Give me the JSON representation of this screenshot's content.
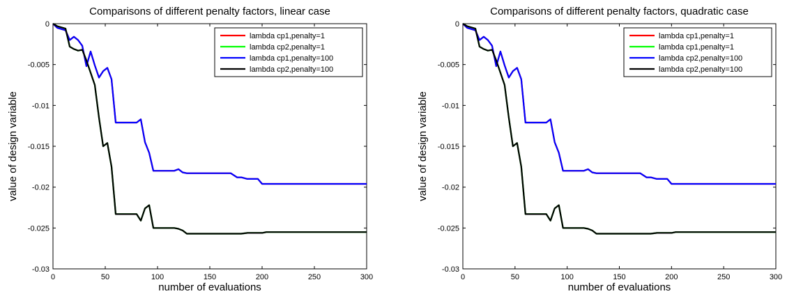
{
  "chart_data": [
    {
      "type": "line",
      "title": "Comparisons of different penalty factors, linear case",
      "xlabel": "number of evaluations",
      "ylabel": "value of design variable",
      "xlim": [
        0,
        300
      ],
      "ylim": [
        -0.03,
        0
      ],
      "xticks": [
        "0",
        "50",
        "100",
        "150",
        "200",
        "250",
        "300"
      ],
      "yticks": [
        "0",
        "-0.005",
        "-0.01",
        "-0.015",
        "-0.02",
        "-0.025",
        "-0.03"
      ],
      "grid": false,
      "legend_position": "top-right",
      "series": [
        {
          "name": "lambda cp1,penalty=1",
          "color": "#ff0000",
          "group": "upper"
        },
        {
          "name": "lambda cp2,penalty=1",
          "color": "#00ff00",
          "group": "lower"
        },
        {
          "name": "lambda cp1,penalty=100",
          "color": "#0000ff",
          "group": "upper"
        },
        {
          "name": "lambda cp2,penalty=100",
          "color": "#000000",
          "group": "lower"
        }
      ]
    },
    {
      "type": "line",
      "title": "Comparisons of different penalty factors, quadratic case",
      "xlabel": "number of evaluations",
      "ylabel": "value of design variable",
      "xlim": [
        0,
        300
      ],
      "ylim": [
        -0.03,
        0
      ],
      "xticks": [
        "0",
        "50",
        "100",
        "150",
        "200",
        "250",
        "300"
      ],
      "yticks": [
        "0",
        "-0.005",
        "-0.01",
        "-0.015",
        "-0.02",
        "-0.025",
        "-0.03"
      ],
      "grid": false,
      "legend_position": "top-right",
      "series": [
        {
          "name": "lambda cp1,penalty=1",
          "color": "#ff0000",
          "group": "upper"
        },
        {
          "name": "lambda cp1,penalty=1",
          "color": "#00ff00",
          "group": "lower"
        },
        {
          "name": "lambda cp2,penalty=100",
          "color": "#0000ff",
          "group": "upper"
        },
        {
          "name": "lambda cp2,penalty=100",
          "color": "#000000",
          "group": "lower"
        }
      ]
    }
  ],
  "curves": {
    "upper": {
      "x": [
        0,
        4,
        12,
        16,
        20,
        24,
        28,
        32,
        36,
        40,
        44,
        48,
        52,
        56,
        60,
        64,
        72,
        80,
        84,
        88,
        92,
        96,
        100,
        108,
        116,
        120,
        124,
        128,
        132,
        140,
        150,
        160,
        170,
        176,
        180,
        186,
        192,
        196,
        200,
        204,
        208,
        220,
        240,
        260,
        280,
        300
      ],
      "y": [
        0,
        -0.0005,
        -0.0008,
        -0.002,
        -0.0016,
        -0.002,
        -0.0027,
        -0.0052,
        -0.0034,
        -0.0051,
        -0.0066,
        -0.0058,
        -0.0054,
        -0.0068,
        -0.0121,
        -0.0121,
        -0.0121,
        -0.0121,
        -0.0117,
        -0.0145,
        -0.0158,
        -0.018,
        -0.018,
        -0.018,
        -0.018,
        -0.0178,
        -0.0182,
        -0.0183,
        -0.0183,
        -0.0183,
        -0.0183,
        -0.0183,
        -0.0183,
        -0.0188,
        -0.0188,
        -0.019,
        -0.019,
        -0.019,
        -0.0196,
        -0.0196,
        -0.0196,
        -0.0196,
        -0.0196,
        -0.0196,
        -0.0196,
        -0.0196
      ]
    },
    "lower": {
      "x": [
        0,
        4,
        12,
        16,
        20,
        24,
        28,
        32,
        36,
        40,
        44,
        48,
        52,
        56,
        60,
        64,
        72,
        80,
        84,
        88,
        92,
        96,
        100,
        108,
        116,
        120,
        124,
        128,
        132,
        140,
        150,
        160,
        170,
        176,
        180,
        186,
        192,
        196,
        200,
        204,
        208,
        220,
        240,
        260,
        280,
        300
      ],
      "y": [
        0,
        -0.0003,
        -0.0006,
        -0.0028,
        -0.0031,
        -0.0033,
        -0.0032,
        -0.0045,
        -0.006,
        -0.0075,
        -0.0115,
        -0.015,
        -0.0146,
        -0.0175,
        -0.0233,
        -0.0233,
        -0.0233,
        -0.0233,
        -0.0241,
        -0.0226,
        -0.0222,
        -0.025,
        -0.025,
        -0.025,
        -0.025,
        -0.0251,
        -0.0253,
        -0.0257,
        -0.0257,
        -0.0257,
        -0.0257,
        -0.0257,
        -0.0257,
        -0.0257,
        -0.0257,
        -0.0256,
        -0.0256,
        -0.0256,
        -0.0256,
        -0.0255,
        -0.0255,
        -0.0255,
        -0.0255,
        -0.0255,
        -0.0255,
        -0.0255
      ]
    }
  }
}
